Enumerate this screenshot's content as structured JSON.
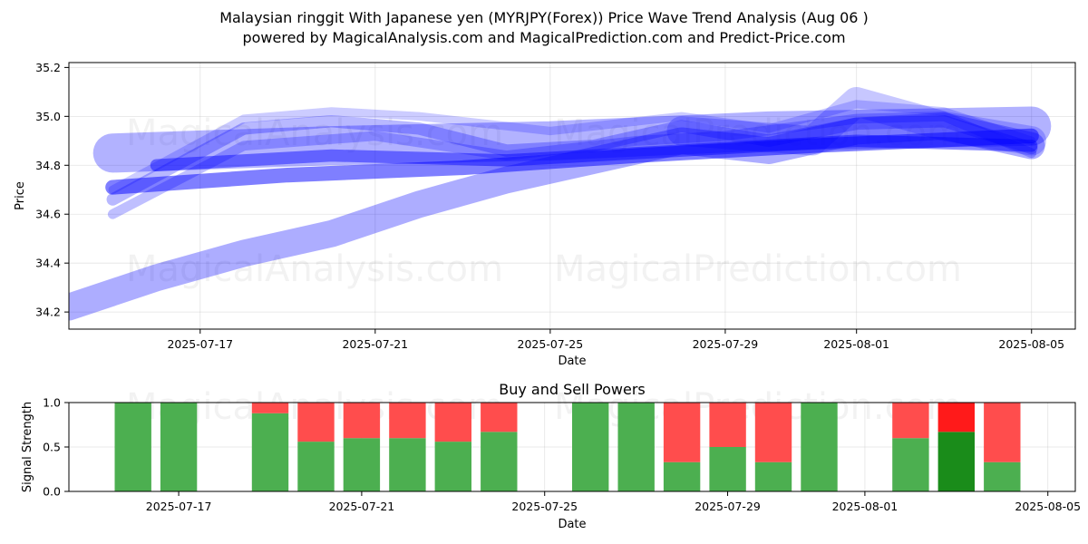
{
  "title_line1": "Malaysian ringgit With Japanese yen (MYRJPY(Forex)) Price Wave Trend Analysis (Aug 06 )",
  "title_line2": "powered by MagicalAnalysis.com and MagicalPrediction.com and Predict-Price.com",
  "watermarks": [
    "MagicalAnalysis.com",
    "MagicalPrediction.com"
  ],
  "chart_data": [
    {
      "type": "area",
      "title": "",
      "xlabel": "Date",
      "ylabel": "Price",
      "ylim": [
        34.13,
        35.22
      ],
      "xlim": [
        "2025-07-14",
        "2025-08-06"
      ],
      "grid": true,
      "x_ticks": [
        "2025-07-17",
        "2025-07-21",
        "2025-07-25",
        "2025-07-29",
        "2025-08-01",
        "2025-08-05"
      ],
      "y_ticks": [
        "34.2",
        "34.4",
        "34.6",
        "34.8",
        "35.0",
        "35.2"
      ],
      "band_color": "#0000ff",
      "series": [
        {
          "x": [
            "2025-07-14",
            "2025-07-16",
            "2025-07-18",
            "2025-07-20",
            "2025-07-22",
            "2025-07-24",
            "2025-07-26",
            "2025-07-28",
            "2025-07-30",
            "2025-08-01",
            "2025-08-03",
            "2025-08-05"
          ],
          "y": [
            34.22,
            34.34,
            34.44,
            34.52,
            34.64,
            34.74,
            34.82,
            34.9,
            34.86,
            34.94,
            34.96,
            34.88
          ],
          "width": 0.11,
          "opacity": 0.32
        },
        {
          "x": [
            "2025-07-15",
            "2025-07-19",
            "2025-07-23",
            "2025-07-27",
            "2025-07-31",
            "2025-08-05"
          ],
          "y": [
            34.71,
            34.76,
            34.79,
            34.84,
            34.88,
            34.92
          ],
          "width": 0.06,
          "opacity": 0.5
        },
        {
          "x": [
            "2025-07-15",
            "2025-07-20",
            "2025-07-25",
            "2025-07-30",
            "2025-08-05"
          ],
          "y": [
            34.85,
            34.88,
            34.9,
            34.94,
            34.96
          ],
          "width": 0.16,
          "opacity": 0.3
        },
        {
          "x": [
            "2025-07-15",
            "2025-07-18",
            "2025-07-20",
            "2025-07-22",
            "2025-07-24",
            "2025-07-26",
            "2025-07-28",
            "2025-07-30",
            "2025-08-01",
            "2025-08-03",
            "2025-08-05"
          ],
          "y": [
            34.66,
            34.95,
            34.98,
            34.95,
            34.86,
            34.88,
            34.96,
            34.9,
            34.97,
            34.98,
            34.87
          ],
          "width": 0.05,
          "opacity": 0.28
        },
        {
          "x": [
            "2025-07-15",
            "2025-07-18",
            "2025-07-21",
            "2025-07-24",
            "2025-07-27",
            "2025-07-29",
            "2025-08-01",
            "2025-08-03",
            "2025-08-05"
          ],
          "y": [
            34.6,
            34.88,
            34.92,
            34.84,
            34.9,
            34.92,
            34.99,
            35.0,
            34.85
          ],
          "width": 0.04,
          "opacity": 0.25
        },
        {
          "x": [
            "2025-07-15",
            "2025-07-18",
            "2025-07-20",
            "2025-07-22",
            "2025-07-25",
            "2025-07-28",
            "2025-07-30",
            "2025-08-01",
            "2025-08-03",
            "2025-08-05"
          ],
          "y": [
            34.7,
            34.99,
            35.02,
            35.0,
            34.94,
            35.0,
            34.95,
            35.05,
            35.02,
            34.9
          ],
          "width": 0.035,
          "opacity": 0.2
        },
        {
          "x": [
            "2025-07-28",
            "2025-07-31",
            "2025-08-01",
            "2025-08-03",
            "2025-08-05"
          ],
          "y": [
            34.94,
            34.9,
            35.06,
            34.96,
            34.9
          ],
          "width": 0.12,
          "opacity": 0.22
        },
        {
          "x": [
            "2025-07-16",
            "2025-07-20",
            "2025-07-24",
            "2025-07-28",
            "2025-08-01",
            "2025-08-05"
          ],
          "y": [
            34.8,
            34.84,
            34.82,
            34.86,
            34.9,
            34.88
          ],
          "width": 0.05,
          "opacity": 0.45
        }
      ]
    },
    {
      "type": "bar",
      "title": "Buy and Sell Powers",
      "xlabel": "Date",
      "ylabel": "Signal Strength",
      "ylim": [
        0,
        1
      ],
      "y_ticks": [
        "0.0",
        "0.5",
        "1.0"
      ],
      "x_ticks": [
        "2025-07-17",
        "2025-07-21",
        "2025-07-25",
        "2025-07-29",
        "2025-08-01",
        "2025-08-05"
      ],
      "grid": true,
      "buy_color": "#4caf50",
      "sell_color": "#ff4d4d",
      "highlight_buy_color": "#1a8c1a",
      "highlight_sell_color": "#ff1a1a",
      "dates": [
        "2025-07-16",
        "2025-07-17",
        "2025-07-19",
        "2025-07-20",
        "2025-07-21",
        "2025-07-22",
        "2025-07-23",
        "2025-07-24",
        "2025-07-26",
        "2025-07-27",
        "2025-07-28",
        "2025-07-29",
        "2025-07-30",
        "2025-07-31",
        "2025-08-02",
        "2025-08-03",
        "2025-08-04"
      ],
      "series": [
        {
          "name": "Buy",
          "values": [
            1.0,
            1.0,
            0.88,
            0.56,
            0.6,
            0.6,
            0.56,
            0.67,
            1.0,
            1.0,
            0.33,
            0.5,
            0.33,
            1.0,
            0.6,
            0.67,
            0.33
          ]
        },
        {
          "name": "Sell",
          "values": [
            0.0,
            0.0,
            0.12,
            0.44,
            0.4,
            0.4,
            0.44,
            0.33,
            0.0,
            0.0,
            0.67,
            0.5,
            0.67,
            0.0,
            0.4,
            0.33,
            0.67
          ]
        }
      ],
      "highlight_index": 15
    }
  ]
}
